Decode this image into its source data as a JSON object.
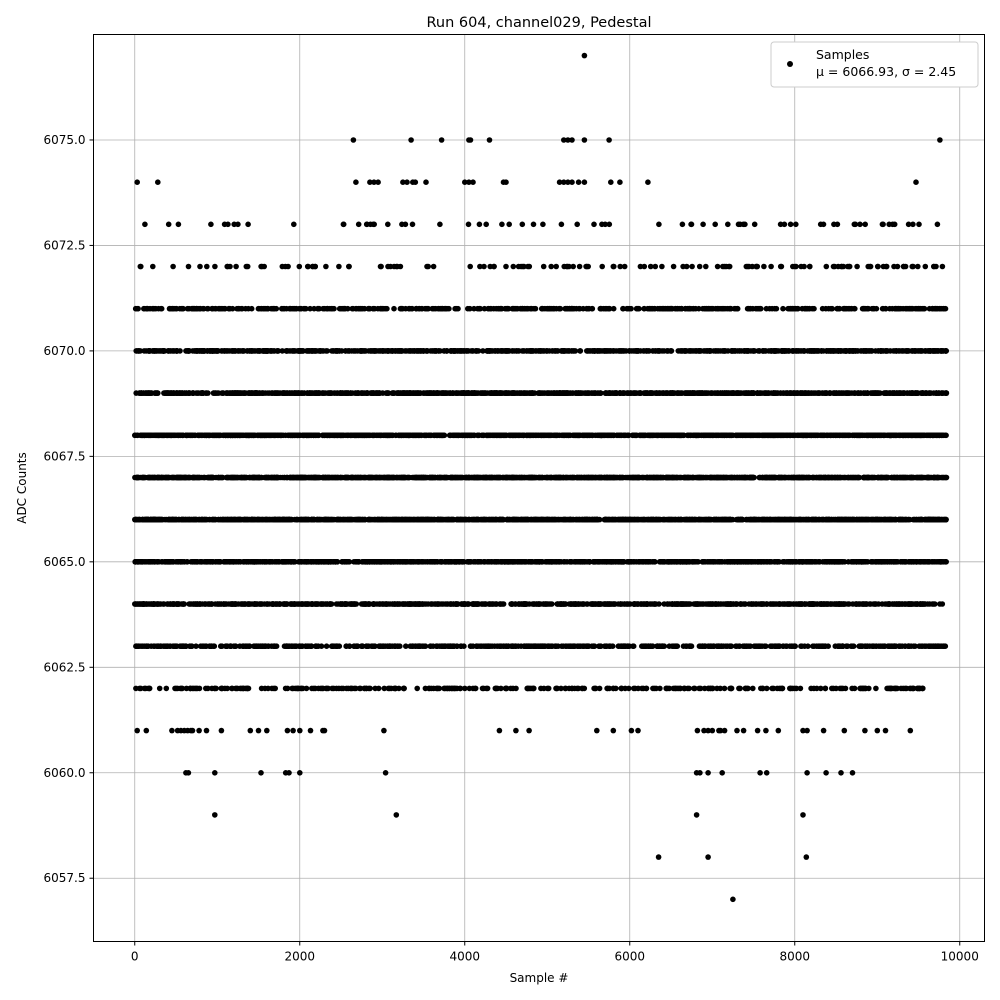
{
  "chart_data": {
    "type": "scatter",
    "title": "Run 604, channel029, Pedestal",
    "xlabel": "Sample #",
    "ylabel": "ADC Counts",
    "xlim": [
      -500,
      10300
    ],
    "ylim": [
      6056,
      6077.5
    ],
    "x_ticks": [
      0,
      2000,
      4000,
      6000,
      8000,
      10000
    ],
    "x_tick_labels": [
      "0",
      "2000",
      "4000",
      "6000",
      "8000",
      "10000"
    ],
    "y_ticks": [
      6057.5,
      6060.0,
      6062.5,
      6065.0,
      6067.5,
      6070.0,
      6072.5,
      6075.0
    ],
    "y_tick_labels": [
      "6057.5",
      "6060.0",
      "6062.5",
      "6065.0",
      "6067.5",
      "6070.0",
      "6072.5",
      "6075.0"
    ],
    "grid": true,
    "legend_position": "top-right",
    "marker_color": "#000000",
    "series": [
      {
        "name": "Samples",
        "label": "μ = 6066.93, σ = 2.45",
        "levels": [
          {
            "y": 6077,
            "count": 0,
            "x": [
              5450
            ]
          },
          {
            "y": 6075,
            "count": 0,
            "x": [
              2650,
              3350,
              3720,
              4050,
              4070,
              4300,
              5200,
              5250,
              5300,
              5450,
              5750,
              9760
            ]
          },
          {
            "y": 6074,
            "count": 0,
            "x": [
              30,
              280,
              2680,
              2850,
              2900,
              2950,
              3250,
              3300,
              3370,
              3400,
              3530,
              4000,
              4050,
              4100,
              4470,
              4500,
              5150,
              5200,
              5250,
              5300,
              5380,
              5450,
              5770,
              5880,
              6220,
              9470
            ]
          },
          {
            "y": 6073,
            "count": 70,
            "xmin": 0,
            "xmax": 9800
          },
          {
            "y": 6072,
            "count": 140,
            "xmin": 0,
            "xmax": 9800
          },
          {
            "y": 6071,
            "count": 520,
            "xmin": 0,
            "xmax": 9840
          },
          {
            "y": 6070,
            "count": 900,
            "xmin": 0,
            "xmax": 9840
          },
          {
            "y": 6069,
            "count": 1150,
            "xmin": 0,
            "xmax": 9840
          },
          {
            "y": 6068,
            "count": 1350,
            "xmin": 0,
            "xmax": 9840
          },
          {
            "y": 6067,
            "count": 1500,
            "xmin": 0,
            "xmax": 9840
          },
          {
            "y": 6066,
            "count": 1500,
            "xmin": 0,
            "xmax": 9840
          },
          {
            "y": 6065,
            "count": 1200,
            "xmin": 0,
            "xmax": 9840
          },
          {
            "y": 6064,
            "count": 950,
            "xmin": 0,
            "xmax": 9800
          },
          {
            "y": 6063,
            "count": 650,
            "xmin": 0,
            "xmax": 9840
          },
          {
            "y": 6062,
            "count": 330,
            "xmin": 0,
            "xmax": 9600
          },
          {
            "y": 6061,
            "count": 0,
            "x": [
              30,
              140,
              450,
              520,
              560,
              600,
              640,
              680,
              700,
              780,
              870,
              1050,
              1400,
              1500,
              1600,
              1850,
              1920,
              2000,
              2130,
              2280,
              2300,
              3020,
              4420,
              4620,
              4780,
              5600,
              5800,
              6020,
              6100,
              6820,
              6900,
              6950,
              7000,
              7080,
              7100,
              7150,
              7300,
              7380,
              7550,
              7650,
              7800,
              8100,
              8150,
              8350,
              8600,
              8850,
              9000,
              9100,
              9400
            ]
          },
          {
            "y": 6060,
            "count": 0,
            "x": [
              620,
              650,
              970,
              1530,
              1830,
              1870,
              2000,
              3040,
              6810,
              6850,
              6950,
              7120,
              7580,
              7660,
              8150,
              8380,
              8560,
              8700
            ]
          },
          {
            "y": 6059,
            "count": 0,
            "x": [
              970,
              3170,
              6810,
              8100
            ]
          },
          {
            "y": 6058,
            "count": 0,
            "x": [
              6350,
              6950,
              8140
            ]
          },
          {
            "y": 6057,
            "count": 0,
            "x": [
              7250
            ]
          }
        ]
      }
    ]
  }
}
